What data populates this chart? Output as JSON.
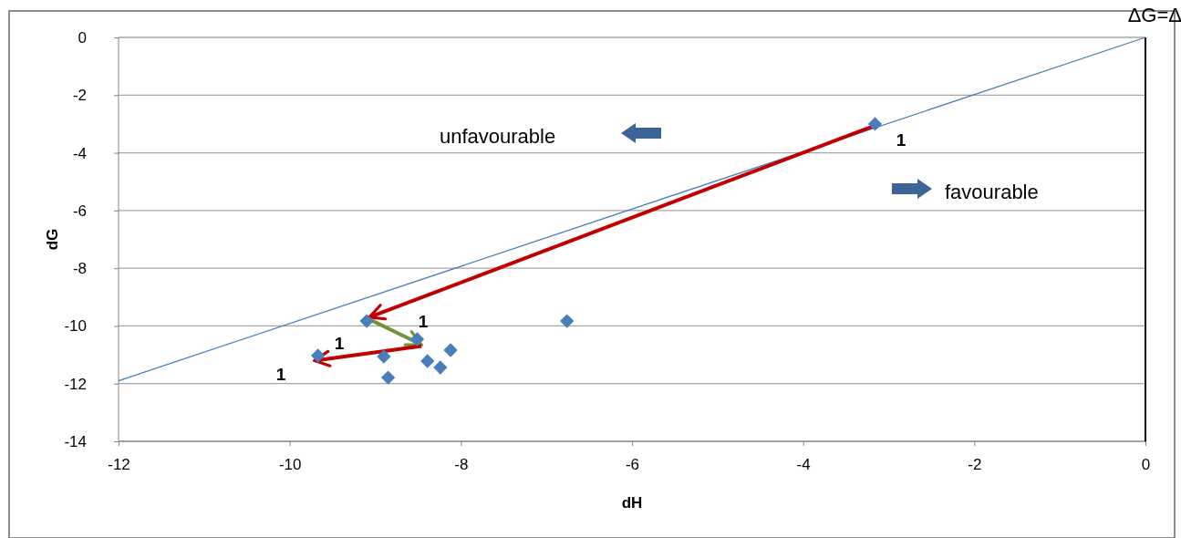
{
  "chart_data": {
    "type": "scatter",
    "xlabel": "dH",
    "ylabel": "dG",
    "xlim": [
      -12,
      0
    ],
    "xticks": [
      -12,
      -10,
      -8,
      -6,
      -4,
      -2,
      0
    ],
    "ylim": [
      -14,
      0
    ],
    "yticks": [
      -14,
      -12,
      -10,
      -8,
      -6,
      -4,
      -2,
      0
    ],
    "grid": "y",
    "series": [
      {
        "color": "#4a7ebb",
        "marker": "diamond",
        "x": [
          -3.16,
          -9.1,
          -6.76,
          -8.51,
          -8.12,
          -9.67,
          -8.9,
          -8.39,
          -8.24,
          -8.85
        ],
        "values": [
          -3.0,
          -9.83,
          -9.83,
          -10.46,
          -10.84,
          -11.03,
          -11.06,
          -11.22,
          -11.44,
          -11.79
        ]
      },
      {
        "type": "line",
        "color": "#4a7ebb",
        "marker": "none",
        "line_style": "solid",
        "x": [
          -12,
          0
        ],
        "values": [
          -11.9,
          0
        ]
      },
      {
        "type": "line",
        "color": "#c00000",
        "marker": "none",
        "line_style": "solid",
        "x": [
          -3.16,
          -9.07
        ],
        "values": [
          -3.05,
          -9.7
        ]
      },
      {
        "type": "line",
        "color": "#77933c",
        "marker": "none",
        "line_style": "solid",
        "x": [
          -9.07,
          -8.46
        ],
        "values": [
          -9.77,
          -10.65
        ]
      },
      {
        "type": "line",
        "color": "#c00000",
        "marker": "none",
        "line_style": "solid",
        "x": [
          -8.46,
          -9.71
        ],
        "values": [
          -10.7,
          -11.2
        ]
      }
    ],
    "ref_lines": [
      {
        "axis": "x",
        "value": 0,
        "color": "#000000"
      }
    ],
    "annotations": [
      "1",
      "1",
      "1",
      "1",
      "unfavourable",
      "favourable",
      "ΔG=Δ"
    ]
  }
}
